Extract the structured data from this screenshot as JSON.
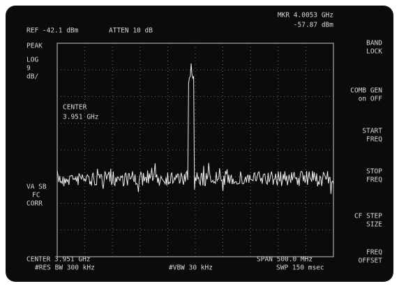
{
  "header": {
    "ref": "REF -42.1 dBm",
    "atten": "ATTEN 10 dB",
    "marker_freq": "MKR 4.0053 GHz",
    "marker_level": "-57.87 dBm"
  },
  "left_labels": [
    "PEAK",
    "LOG",
    "9",
    "dB/"
  ],
  "mode_labels": [
    "VA SB",
    "FC",
    "CORR"
  ],
  "annotation": [
    "CENTER",
    "3.951 GHz"
  ],
  "footer": {
    "center": "CENTER 3.951 GHz",
    "span": "SPAN 500.0 MHz",
    "res_bw": "#RES BW 300 kHz",
    "vbw": "#VBW 30 kHz",
    "swp": "SWP 150 msec"
  },
  "softkeys": [
    [
      "BAND",
      "LOCK"
    ],
    [
      "COMB GEN",
      "on  OFF"
    ],
    [
      "START",
      "FREQ"
    ],
    [
      "STOP",
      "FREQ"
    ],
    [
      "CF STEP",
      "SIZE"
    ],
    [
      "FREQ",
      "OFFSET"
    ]
  ]
}
